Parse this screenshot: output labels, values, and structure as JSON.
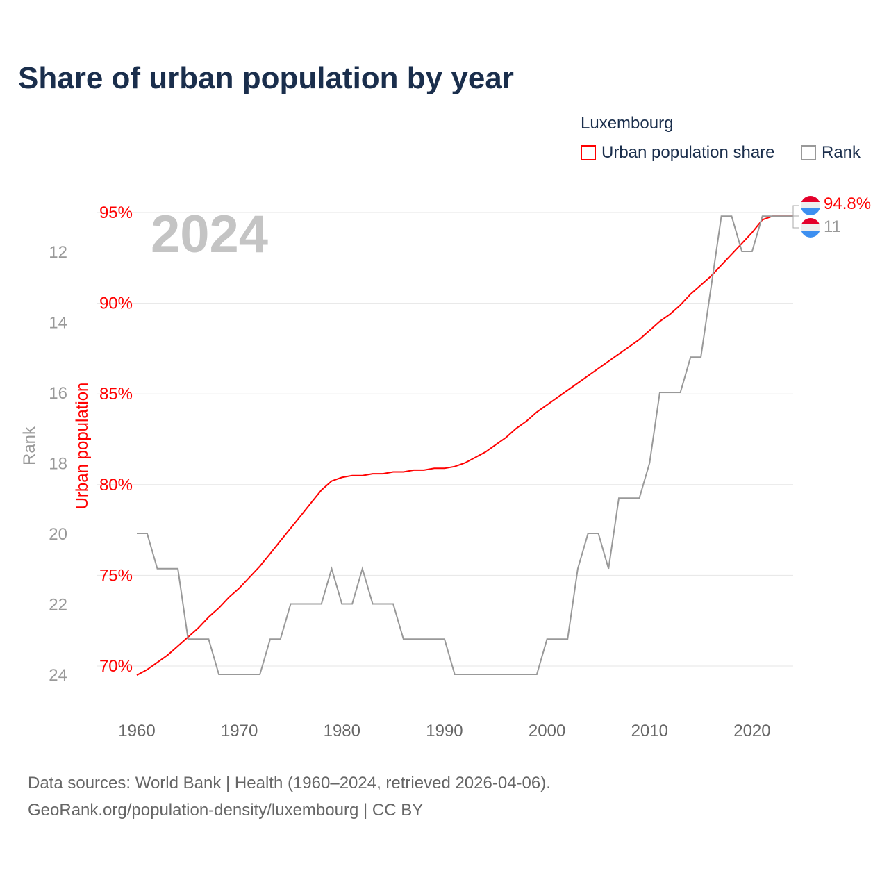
{
  "title": "Share of urban population by year",
  "legend": {
    "title": "Luxembourg",
    "items": [
      {
        "label": "Urban population share",
        "color": "#ff0000"
      },
      {
        "label": "Rank",
        "color": "#999999"
      }
    ]
  },
  "year_watermark": "2024",
  "source": {
    "line1": "Data sources: World Bank | Health (1960–2024, retrieved 2026-04-06).",
    "line2": "GeoRank.org/population-density/luxembourg | CC BY"
  },
  "end_labels": {
    "urban": "94.8%",
    "rank": "11",
    "flag": "luxembourg-flag-icon"
  },
  "chart_data": {
    "type": "line",
    "title": "Share of urban population by year",
    "xlabel": "",
    "ylabel": "Urban population",
    "y2label": "Rank",
    "xlim": [
      1960,
      2024
    ],
    "ylim": [
      70,
      95
    ],
    "y2lim": [
      24,
      11
    ],
    "x_ticks": [
      1960,
      1970,
      1980,
      1990,
      2000,
      2010,
      2020
    ],
    "y_ticks": [
      "70%",
      "75%",
      "80%",
      "85%",
      "90%",
      "95%"
    ],
    "y2_ticks": [
      12,
      14,
      16,
      18,
      20,
      22,
      24
    ],
    "x": [
      1960,
      1961,
      1962,
      1963,
      1964,
      1965,
      1966,
      1967,
      1968,
      1969,
      1970,
      1971,
      1972,
      1973,
      1974,
      1975,
      1976,
      1977,
      1978,
      1979,
      1980,
      1981,
      1982,
      1983,
      1984,
      1985,
      1986,
      1987,
      1988,
      1989,
      1990,
      1991,
      1992,
      1993,
      1994,
      1995,
      1996,
      1997,
      1998,
      1999,
      2000,
      2001,
      2002,
      2003,
      2004,
      2005,
      2006,
      2007,
      2008,
      2009,
      2010,
      2011,
      2012,
      2013,
      2014,
      2015,
      2016,
      2017,
      2018,
      2019,
      2020,
      2021,
      2022,
      2023,
      2024
    ],
    "series": [
      {
        "name": "Urban population share",
        "color": "#ff0000",
        "axis": "left",
        "values": [
          69.5,
          69.8,
          70.2,
          70.6,
          71.1,
          71.6,
          72.1,
          72.7,
          73.2,
          73.8,
          74.3,
          74.9,
          75.5,
          76.2,
          76.9,
          77.6,
          78.3,
          79.0,
          79.7,
          80.2,
          80.4,
          80.5,
          80.5,
          80.6,
          80.6,
          80.7,
          80.7,
          80.8,
          80.8,
          80.9,
          80.9,
          81.0,
          81.2,
          81.5,
          81.8,
          82.2,
          82.6,
          83.1,
          83.5,
          84.0,
          84.4,
          84.8,
          85.2,
          85.6,
          86.0,
          86.4,
          86.8,
          87.2,
          87.6,
          88.0,
          88.5,
          89.0,
          89.4,
          89.9,
          90.5,
          91.0,
          91.5,
          92.1,
          92.7,
          93.3,
          93.9,
          94.6,
          94.8,
          94.8,
          94.8
        ]
      },
      {
        "name": "Rank",
        "color": "#999999",
        "axis": "right",
        "values": [
          20,
          20,
          21,
          21,
          21,
          23,
          23,
          23,
          24,
          24,
          24,
          24,
          24,
          23,
          23,
          22,
          22,
          22,
          22,
          21,
          22,
          22,
          21,
          22,
          22,
          22,
          23,
          23,
          23,
          23,
          23,
          24,
          24,
          24,
          24,
          24,
          24,
          24,
          24,
          24,
          23,
          23,
          23,
          21,
          20,
          20,
          21,
          19,
          19,
          19,
          18,
          16,
          16,
          16,
          15,
          15,
          13,
          11,
          11,
          12,
          12,
          11,
          11,
          11,
          11
        ]
      }
    ]
  }
}
